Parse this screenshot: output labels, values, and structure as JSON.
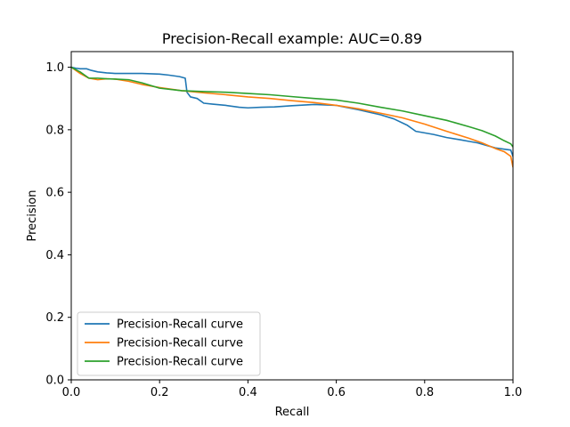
{
  "chart_data": {
    "type": "line",
    "title": "Precision-Recall example: AUC=0.89",
    "xlabel": "Recall",
    "ylabel": "Precision",
    "xlim": [
      0,
      1
    ],
    "ylim": [
      0,
      1.05
    ],
    "xticks": [
      "0.0",
      "0.2",
      "0.4",
      "0.6",
      "0.8",
      "1.0"
    ],
    "yticks": [
      "0.0",
      "0.2",
      "0.4",
      "0.6",
      "0.8",
      "1.0"
    ],
    "legend_position": "lower-left",
    "grid": false,
    "series": [
      {
        "name": "Precision-Recall curve",
        "color": "#1f77b4",
        "x": [
          0.0,
          0.01,
          0.02,
          0.035,
          0.045,
          0.06,
          0.08,
          0.1,
          0.13,
          0.16,
          0.2,
          0.22,
          0.245,
          0.258,
          0.262,
          0.27,
          0.285,
          0.3,
          0.32,
          0.35,
          0.38,
          0.4,
          0.43,
          0.46,
          0.5,
          0.55,
          0.6,
          0.65,
          0.7,
          0.73,
          0.76,
          0.78,
          0.8,
          0.82,
          0.85,
          0.88,
          0.9,
          0.92,
          0.94,
          0.96,
          0.98,
          0.995,
          1.0
        ],
        "y": [
          1.0,
          0.997,
          0.995,
          0.995,
          0.99,
          0.985,
          0.982,
          0.98,
          0.98,
          0.98,
          0.978,
          0.975,
          0.97,
          0.965,
          0.92,
          0.905,
          0.9,
          0.885,
          0.882,
          0.878,
          0.872,
          0.87,
          0.872,
          0.873,
          0.877,
          0.881,
          0.878,
          0.864,
          0.848,
          0.835,
          0.815,
          0.795,
          0.79,
          0.785,
          0.775,
          0.768,
          0.763,
          0.758,
          0.75,
          0.742,
          0.738,
          0.735,
          0.715
        ]
      },
      {
        "name": "Precision-Recall curve",
        "color": "#ff7f0e",
        "x": [
          0.0,
          0.02,
          0.04,
          0.06,
          0.08,
          0.1,
          0.13,
          0.16,
          0.2,
          0.25,
          0.3,
          0.35,
          0.4,
          0.45,
          0.5,
          0.55,
          0.6,
          0.65,
          0.7,
          0.75,
          0.8,
          0.85,
          0.9,
          0.93,
          0.96,
          0.98,
          0.995,
          1.0
        ],
        "y": [
          1.0,
          0.98,
          0.965,
          0.96,
          0.963,
          0.962,
          0.955,
          0.945,
          0.935,
          0.925,
          0.918,
          0.912,
          0.905,
          0.9,
          0.893,
          0.887,
          0.878,
          0.867,
          0.853,
          0.838,
          0.818,
          0.795,
          0.773,
          0.758,
          0.74,
          0.73,
          0.715,
          0.68
        ]
      },
      {
        "name": "Precision-Recall curve",
        "color": "#2ca02c",
        "x": [
          0.0,
          0.02,
          0.04,
          0.06,
          0.08,
          0.1,
          0.13,
          0.16,
          0.2,
          0.25,
          0.3,
          0.35,
          0.4,
          0.45,
          0.5,
          0.55,
          0.6,
          0.65,
          0.7,
          0.75,
          0.8,
          0.85,
          0.9,
          0.93,
          0.96,
          0.98,
          0.995,
          1.0
        ],
        "y": [
          1.0,
          0.985,
          0.965,
          0.965,
          0.963,
          0.962,
          0.96,
          0.95,
          0.933,
          0.925,
          0.922,
          0.92,
          0.916,
          0.912,
          0.906,
          0.9,
          0.895,
          0.885,
          0.872,
          0.86,
          0.845,
          0.83,
          0.81,
          0.797,
          0.78,
          0.765,
          0.755,
          0.745
        ]
      }
    ]
  }
}
